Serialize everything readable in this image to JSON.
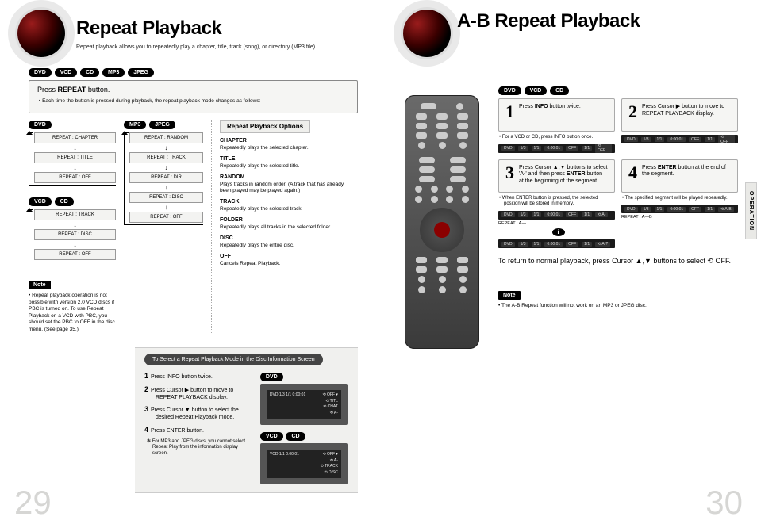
{
  "speakerColor": "#8b0000",
  "left": {
    "title": "Repeat Playback",
    "subtitle": "Repeat playback allows you to repeatedly play a chapter, title, track (song), or directory (MP3 file).",
    "formats": [
      "DVD",
      "VCD",
      "CD",
      "MP3",
      "JPEG"
    ],
    "card": {
      "title_pre": "Press ",
      "title_bold": "REPEAT",
      "title_post": " button.",
      "bullet": "Each time the button is pressed during playback, the repeat playback mode changes as follows:"
    },
    "flows": {
      "dvd": {
        "badges": [
          "DVD"
        ],
        "steps": [
          "REPEAT : CHAPTER",
          "REPEAT : TITLE",
          "REPEAT : OFF"
        ]
      },
      "vcdcd": {
        "badges": [
          "VCD",
          "CD"
        ],
        "steps": [
          "REPEAT : TRACK",
          "REPEAT : DISC",
          "REPEAT : OFF"
        ]
      },
      "mp3": {
        "badges": [
          "MP3",
          "JPEG"
        ],
        "steps": [
          "REPEAT : RANDOM",
          "REPEAT : TRACK",
          "REPEAT : DIR",
          "REPEAT : DISC",
          "REPEAT : OFF"
        ]
      }
    },
    "options": {
      "header": "Repeat Playback Options",
      "items": [
        {
          "k": "CHAPTER",
          "v": "Repeatedly plays the selected chapter."
        },
        {
          "k": "TITLE",
          "v": "Repeatedly plays the selected title."
        },
        {
          "k": "RANDOM",
          "v": "Plays tracks in random order. (A track that has already been played may be played again.)"
        },
        {
          "k": "TRACK",
          "v": "Repeatedly plays the selected track."
        },
        {
          "k": "FOLDER",
          "v": "Repeatedly plays all tracks in the selected folder."
        },
        {
          "k": "DISC",
          "v": "Repeatedly plays the entire disc."
        },
        {
          "k": "OFF",
          "v": "Cancels Repeat Playback."
        }
      ]
    },
    "noteBadge": "Note",
    "noteText": "Repeat playback operation is not possible with version 2.0 VCD discs if PBC is turned on. To use Repeat Playback on a VCD with PBC, you should set the PBC to OFF in the disc menu. (See page 35.)",
    "panel": {
      "title": "To Select a Repeat Playback Mode in the Disc Information Screen",
      "steps": [
        "Press INFO button twice.",
        "Press Cursor ▶ button to move to REPEAT PLAYBACK display.",
        "Press Cursor ▼ button to select the desired Repeat Playback mode.",
        "Press ENTER button."
      ],
      "foot": "For MP3 and JPEG discs, you cannot select Repeat Play from the information display screen.",
      "tvBadgesTop": [
        "DVD"
      ],
      "tvBadgesBot": [
        "VCD",
        "CD"
      ],
      "tvLinesTop": [
        "⟲ OFF ▾",
        "⟲ TITL",
        "⟲ CHAT",
        "⟲ A-"
      ],
      "tvLinesBot": [
        "⟲ OFF ▾",
        "⟲ A-",
        "⟲ TRACK",
        "⟲ DISC"
      ]
    },
    "pageNum": "29"
  },
  "right": {
    "title": "A-B Repeat Playback",
    "formats": [
      "DVD",
      "VCD",
      "CD"
    ],
    "sideTab": "OPERATION",
    "steps": [
      {
        "n": "1",
        "text_pre": "Press ",
        "text_b": "INFO",
        "text_post": " button twice.",
        "sub": "For a VCD or CD, press INFO button once.",
        "osd": [
          "DVD",
          "1/3",
          "1/1",
          "0:00:01",
          "OFF",
          "1/1",
          "⟲ OFF"
        ]
      },
      {
        "n": "2",
        "text_pre": "Press Cursor ▶ button to move to REPEAT PLAYBACK display.",
        "text_b": "",
        "text_post": "",
        "osd": [
          "DVD",
          "1/3",
          "1/1",
          "0:00:01",
          "OFF",
          "1/1",
          "⟲ OFF"
        ]
      },
      {
        "n": "3",
        "text_pre": "Press Cursor ▲,▼ buttons to select 'A-' and then press ",
        "text_b": "ENTER",
        "text_post": " button at the beginning of the segment.",
        "sub": "When ENTER button is pressed, the selected position will be stored in memory.",
        "osd": [
          "DVD",
          "1/3",
          "1/1",
          "0:00:01",
          "OFF",
          "1/1",
          "⟲ A-"
        ],
        "osdNote": "REPEAT : A—",
        "osd2": [
          "DVD",
          "1/3",
          "1/1",
          "0:00:01",
          "OFF",
          "1/1",
          "⟲ A-?"
        ]
      },
      {
        "n": "4",
        "text_pre": "Press ",
        "text_b": "ENTER",
        "text_post": " button at the end of the segment.",
        "sub": "The specified segment will be played repeatedly.",
        "osd": [
          "DVD",
          "1/3",
          "1/1",
          "0:00:01",
          "OFF",
          "1/1",
          "⟲ A-B"
        ],
        "osdNote": "REPEAT : A—B"
      }
    ],
    "returnText": "To return to normal playback, press Cursor ▲,▼ buttons to select  ⟲ OFF.",
    "noteBadge": "Note",
    "noteText": "The A-B Repeat function will not work on an MP3 or JPEG disc.",
    "pageNum": "30"
  }
}
